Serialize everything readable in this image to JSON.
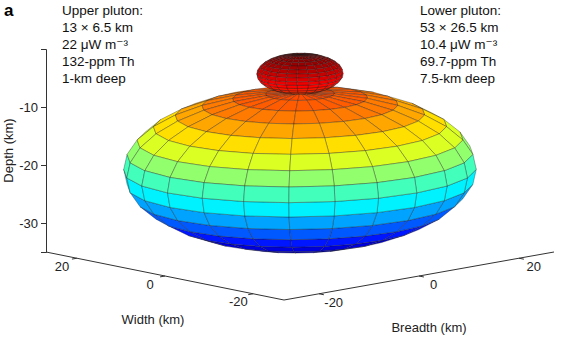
{
  "chart_data": {
    "type": "ellipsoid3d",
    "panel_label": "a",
    "annotations": [
      {
        "lines": [
          "Upper pluton:",
          "13 × 6.5 km",
          "22 μW m⁻³",
          "132-ppm Th",
          "1-km deep"
        ]
      },
      {
        "lines": [
          "Lower pluton:",
          "53 × 26.5 km",
          "10.4 μW m⁻³",
          "69.7-ppm Th",
          "7.5-km deep"
        ]
      }
    ],
    "bodies": [
      {
        "diameter": 13,
        "height": 6.5,
        "top": -1
      },
      {
        "diameter": 53,
        "height": 26.5,
        "top": -7.5
      }
    ],
    "xlabel": "Width (km)",
    "ylabel": "Breadth (km)",
    "zlabel": "Depth (km)",
    "xlim": [
      -27,
      27
    ],
    "xticks": [
      -20,
      0,
      20
    ],
    "ylim": [
      -27,
      27
    ],
    "yticks": [
      -20,
      0,
      20
    ],
    "zlim": [
      -35,
      0
    ],
    "zticks": [
      -30,
      -20,
      -10
    ]
  }
}
